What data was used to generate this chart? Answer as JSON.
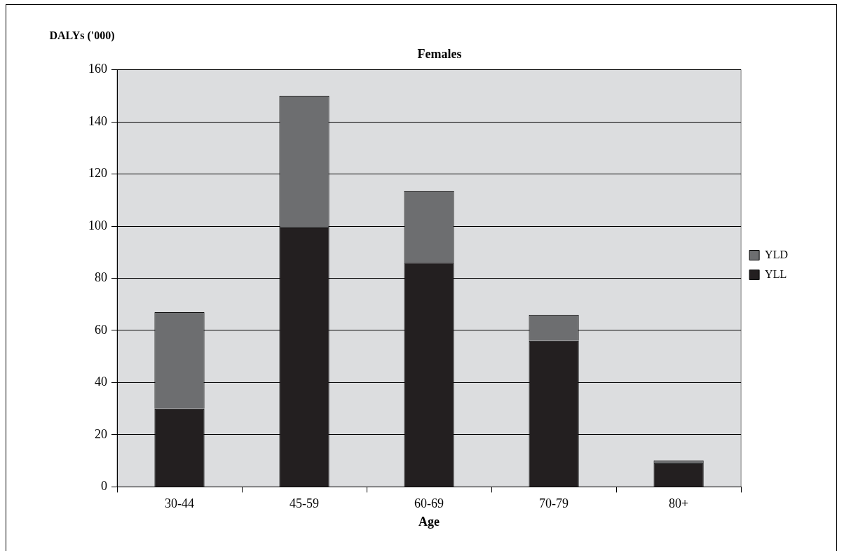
{
  "chart_data": {
    "type": "bar",
    "title": "Females",
    "xlabel": "Age",
    "ylabel": "DALYs ('000)",
    "categories": [
      "30-44",
      "45-59",
      "60-69",
      "70-79",
      "80+"
    ],
    "stacked": true,
    "ylim": [
      0,
      160
    ],
    "yticks": [
      0,
      20,
      40,
      60,
      80,
      100,
      120,
      140,
      160
    ],
    "grid": "y",
    "legend": "right",
    "series": [
      {
        "name": "YLL",
        "color": "#231f20",
        "values": [
          30,
          99.5,
          86,
          56,
          9
        ]
      },
      {
        "name": "YLD",
        "color": "#6d6e70",
        "values": [
          37,
          50.5,
          27.5,
          10,
          1.2
        ]
      }
    ]
  }
}
